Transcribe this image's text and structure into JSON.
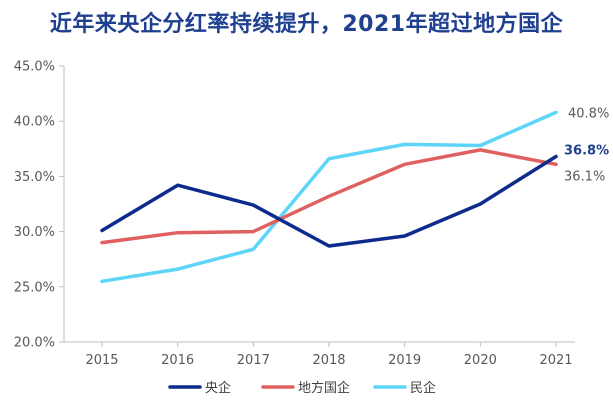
{
  "chart_data": {
    "type": "line",
    "title": "近年来央企分红率持续提升，2021年超过地方国企",
    "xlabel": "",
    "ylabel": "",
    "categories": [
      "2015",
      "2016",
      "2017",
      "2018",
      "2019",
      "2020",
      "2021"
    ],
    "ylim": [
      20,
      45
    ],
    "yticks": [
      "20.0%",
      "25.0%",
      "30.0%",
      "35.0%",
      "40.0%",
      "45.0%"
    ],
    "grid": false,
    "legend_position": "bottom",
    "series": [
      {
        "name": "央企",
        "color": "#0c2b8c",
        "values": [
          30.1,
          34.2,
          32.4,
          28.7,
          29.6,
          32.5,
          36.8
        ],
        "end_label": "36.8%",
        "end_label_bold": true
      },
      {
        "name": "地方国企",
        "color": "#e06060",
        "values": [
          29.0,
          29.9,
          30.0,
          33.2,
          36.1,
          37.4,
          36.1
        ],
        "end_label": "36.1%",
        "end_label_bold": false
      },
      {
        "name": "民企",
        "color": "#5dd5f8",
        "values": [
          25.5,
          26.6,
          28.4,
          36.6,
          37.9,
          37.8,
          40.8
        ],
        "end_label": "40.8%",
        "end_label_bold": false
      }
    ]
  }
}
